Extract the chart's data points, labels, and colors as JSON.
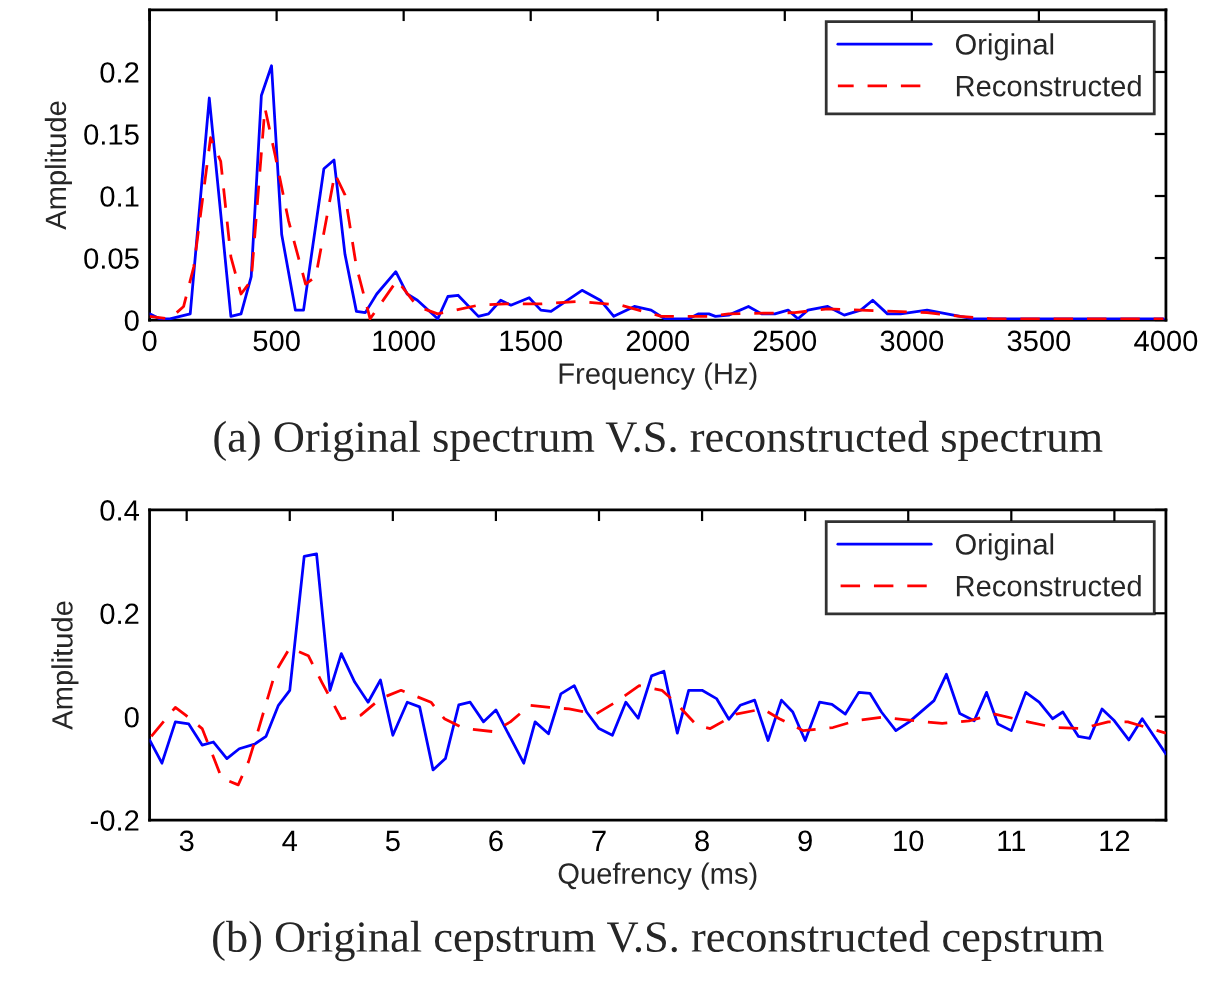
{
  "chart_data": [
    {
      "type": "line",
      "title": "(a) Original spectrum V.S. reconstructed spectrum",
      "xlabel": "Frequency (Hz)",
      "ylabel": "Amplitude",
      "xlim": [
        0,
        4000
      ],
      "ylim": [
        0,
        0.25
      ],
      "xticks": [
        0,
        500,
        1000,
        1500,
        2000,
        2500,
        3000,
        3500,
        4000
      ],
      "yticks": [
        0,
        0.05,
        0.1,
        0.15,
        0.2
      ],
      "grid": false,
      "legend": "top right",
      "marker": "none",
      "series": [
        {
          "name": "Original",
          "color": "#0000ff",
          "line_style": "solid",
          "x": [
            0,
            40,
            80,
            160,
            235,
            320,
            360,
            400,
            440,
            480,
            520,
            574,
            606,
            686,
            726,
            769,
            814,
            849,
            894,
            969,
            1014,
            1054,
            1134,
            1174,
            1214,
            1294,
            1334,
            1382,
            1422,
            1494,
            1540,
            1580,
            1702,
            1774,
            1827,
            1908,
            1974,
            2028,
            2121,
            2161,
            2201,
            2227,
            2279,
            2357,
            2409,
            2461,
            2513,
            2552,
            2591,
            2669,
            2734,
            2799,
            2846,
            2904,
            2956,
            3060,
            3138,
            3190,
            3242,
            3450,
            3711,
            3990
          ],
          "values": [
            0.005,
            0.001,
            0.001,
            0.005,
            0.179,
            0.003,
            0.005,
            0.035,
            0.181,
            0.205,
            0.069,
            0.008,
            0.008,
            0.122,
            0.129,
            0.053,
            0.007,
            0.006,
            0.021,
            0.039,
            0.021,
            0.016,
            0.001,
            0.019,
            0.02,
            0.003,
            0.005,
            0.016,
            0.012,
            0.018,
            0.008,
            0.007,
            0.024,
            0.016,
            0.003,
            0.011,
            0.008,
            0.001,
            0.001,
            0.005,
            0.005,
            0.003,
            0.004,
            0.011,
            0.005,
            0.005,
            0.008,
            0.001,
            0.008,
            0.011,
            0.004,
            0.008,
            0.016,
            0.005,
            0.005,
            0.008,
            0.005,
            0.003,
            0.001,
            0.001,
            0.001,
            0.001
          ]
        },
        {
          "name": "Reconstructed",
          "color": "#ff0000",
          "line_style": "dashed",
          "x": [
            0,
            80,
            134,
            174,
            240,
            280,
            320,
            360,
            400,
            454,
            494,
            547,
            614,
            654,
            729,
            769,
            814,
            868,
            974,
            1054,
            1134,
            1294,
            1400,
            1534,
            1694,
            1854,
            2014,
            2201,
            2279,
            2539,
            2669,
            2799,
            2930,
            3060,
            3190,
            3320,
            3990
          ],
          "values": [
            0.003,
            0.001,
            0.011,
            0.043,
            0.147,
            0.128,
            0.051,
            0.021,
            0.032,
            0.171,
            0.133,
            0.08,
            0.029,
            0.035,
            0.118,
            0.101,
            0.043,
            0.001,
            0.032,
            0.011,
            0.005,
            0.012,
            0.013,
            0.013,
            0.015,
            0.012,
            0.003,
            0.003,
            0.005,
            0.006,
            0.009,
            0.008,
            0.007,
            0.006,
            0.003,
            0.001,
            0.001
          ]
        }
      ]
    },
    {
      "type": "line",
      "title": "(b) Original cepstrum V.S. reconstructed cepstrum",
      "xlabel": "Quefrency (ms)",
      "ylabel": "Amplitude",
      "xlim": [
        2.64,
        12.5
      ],
      "ylim": [
        -0.2,
        0.4
      ],
      "xticks": [
        3,
        4,
        5,
        6,
        7,
        8,
        9,
        10,
        11,
        12
      ],
      "yticks": [
        -0.2,
        0,
        0.2,
        0.4
      ],
      "grid": false,
      "legend": "top right",
      "marker": "none",
      "series": [
        {
          "name": "Original",
          "color": "#0000ff",
          "line_style": "solid",
          "x": [
            2.64,
            2.76,
            2.89,
            3.02,
            3.15,
            3.26,
            3.39,
            3.51,
            3.66,
            3.77,
            3.89,
            4.0,
            4.14,
            4.26,
            4.39,
            4.5,
            4.63,
            4.76,
            4.88,
            5.0,
            5.14,
            5.26,
            5.39,
            5.51,
            5.64,
            5.75,
            5.88,
            6.0,
            6.27,
            6.38,
            6.51,
            6.63,
            6.76,
            6.88,
            7.0,
            7.13,
            7.26,
            7.38,
            7.51,
            7.63,
            7.76,
            7.87,
            8.0,
            8.14,
            8.26,
            8.37,
            8.51,
            8.64,
            8.77,
            8.88,
            9.0,
            9.14,
            9.26,
            9.39,
            9.52,
            9.63,
            9.74,
            9.88,
            10.01,
            10.25,
            10.37,
            10.5,
            10.64,
            10.76,
            10.87,
            11.0,
            11.14,
            11.27,
            11.4,
            11.5,
            11.65,
            11.76,
            11.88,
            12.0,
            12.14,
            12.27,
            12.5
          ],
          "values": [
            -0.045,
            -0.09,
            -0.01,
            -0.014,
            -0.055,
            -0.049,
            -0.081,
            -0.062,
            -0.053,
            -0.038,
            0.022,
            0.051,
            0.31,
            0.315,
            0.051,
            0.122,
            0.067,
            0.028,
            0.071,
            -0.036,
            0.028,
            0.019,
            -0.103,
            -0.081,
            0.023,
            0.028,
            -0.01,
            0.013,
            -0.09,
            -0.01,
            -0.033,
            0.044,
            0.06,
            0.009,
            -0.023,
            -0.036,
            0.028,
            -0.003,
            0.079,
            0.088,
            -0.032,
            0.051,
            0.051,
            0.035,
            -0.005,
            0.022,
            0.032,
            -0.046,
            0.032,
            0.009,
            -0.046,
            0.028,
            0.024,
            0.005,
            0.047,
            0.045,
            0.009,
            -0.027,
            -0.01,
            0.031,
            0.082,
            0.006,
            -0.008,
            0.047,
            -0.014,
            -0.027,
            0.047,
            0.028,
            -0.004,
            0.009,
            -0.038,
            -0.042,
            0.015,
            -0.008,
            -0.045,
            -0.004,
            -0.072
          ]
        },
        {
          "name": "Reconstructed",
          "color": "#ff0000",
          "line_style": "dashed",
          "x": [
            2.64,
            2.89,
            2.99,
            3.15,
            3.21,
            3.34,
            3.5,
            3.6,
            3.69,
            3.86,
            4.0,
            4.18,
            4.31,
            4.5,
            4.69,
            4.88,
            5.08,
            5.37,
            5.5,
            5.69,
            5.98,
            6.14,
            6.33,
            6.52,
            6.71,
            6.97,
            7.16,
            7.39,
            7.61,
            7.74,
            7.95,
            8.08,
            8.33,
            8.59,
            8.75,
            8.98,
            9.27,
            9.49,
            9.75,
            10.07,
            10.33,
            10.59,
            10.84,
            11.16,
            11.42,
            11.68,
            11.94,
            12.13,
            12.5
          ],
          "values": [
            -0.042,
            0.018,
            0.003,
            -0.023,
            -0.053,
            -0.119,
            -0.132,
            -0.087,
            -0.029,
            0.086,
            0.133,
            0.118,
            0.067,
            -0.004,
            0.003,
            0.035,
            0.051,
            0.028,
            -0.004,
            -0.023,
            -0.029,
            -0.01,
            0.022,
            0.018,
            0.015,
            0.005,
            0.028,
            0.06,
            0.051,
            0.028,
            -0.017,
            -0.023,
            0.005,
            0.015,
            -0.004,
            -0.027,
            -0.021,
            -0.008,
            -0.001,
            -0.008,
            -0.013,
            -0.008,
            0.005,
            -0.01,
            -0.021,
            -0.023,
            -0.01,
            -0.01,
            -0.032
          ]
        }
      ]
    }
  ]
}
